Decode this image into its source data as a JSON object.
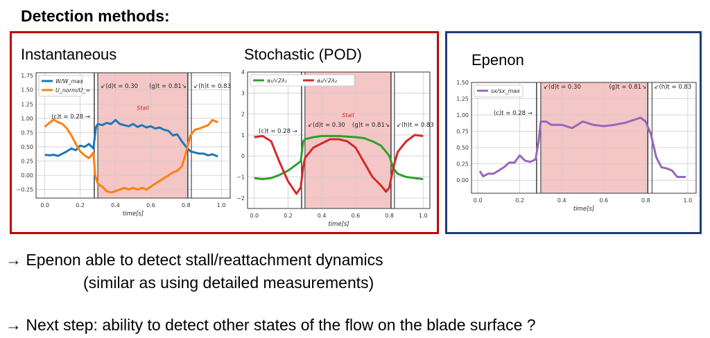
{
  "title": "Detection methods:",
  "sections": [
    "Instantaneous",
    "Stochastic (POD)",
    "Epenon"
  ],
  "colors": {
    "left_box": "#c00000",
    "right_box": "#1f3b7a",
    "stall_shade": "#f5c6c6"
  },
  "notes": [
    "→ Epenon able to detect stall/reattachment dynamics",
    "(similar as using detailed measurements)",
    "→ Next step: ability to detect other states of the flow on the blade surface ?"
  ],
  "chart_data": [
    {
      "type": "line",
      "xlabel": "time[s]",
      "xlim": [
        -0.05,
        1.05
      ],
      "ylim": [
        -0.4,
        1.8
      ],
      "xticks": [
        "0.0",
        "0.2",
        "0.4",
        "0.6",
        "0.8",
        "1.0"
      ],
      "yticks": [
        "-0.25",
        "0.00",
        "0.25",
        "0.50",
        "0.75",
        "1.00",
        "1.25",
        "1.50",
        "1.75"
      ],
      "grid": true,
      "legend": "top-left",
      "shaded_region": [
        0.3,
        0.81
      ],
      "shaded_label": "Stall",
      "vlines": [
        0.28,
        0.3,
        0.81,
        0.83
      ],
      "annotations": [
        "(c)t = 0.28",
        "(d)t = 0.30",
        "(g)t = 0.81",
        "(h)t = 0.83"
      ],
      "series": [
        {
          "name": "W/W_max",
          "color": "#1f77b4",
          "x": [
            0,
            0.025,
            0.05,
            0.075,
            0.1,
            0.125,
            0.15,
            0.175,
            0.2,
            0.225,
            0.25,
            0.275,
            0.29,
            0.3,
            0.325,
            0.35,
            0.375,
            0.4,
            0.425,
            0.45,
            0.475,
            0.5,
            0.525,
            0.55,
            0.575,
            0.6,
            0.625,
            0.65,
            0.675,
            0.7,
            0.725,
            0.75,
            0.775,
            0.8,
            0.825,
            0.85,
            0.875,
            0.9,
            0.925,
            0.95,
            0.98
          ],
          "y": [
            0.36,
            0.35,
            0.36,
            0.34,
            0.38,
            0.42,
            0.47,
            0.44,
            0.52,
            0.5,
            0.55,
            0.47,
            0.85,
            0.9,
            0.88,
            0.92,
            0.9,
            0.97,
            0.9,
            0.88,
            0.86,
            0.9,
            0.85,
            0.88,
            0.84,
            0.86,
            0.82,
            0.84,
            0.8,
            0.78,
            0.7,
            0.72,
            0.6,
            0.5,
            0.42,
            0.4,
            0.38,
            0.38,
            0.35,
            0.37,
            0.33
          ]
        },
        {
          "name": "U_norm/U_∞",
          "color": "#ff7f0e",
          "x": [
            0,
            0.025,
            0.05,
            0.075,
            0.1,
            0.125,
            0.15,
            0.175,
            0.2,
            0.225,
            0.25,
            0.275,
            0.285,
            0.3,
            0.325,
            0.35,
            0.375,
            0.4,
            0.425,
            0.45,
            0.475,
            0.5,
            0.525,
            0.55,
            0.575,
            0.6,
            0.625,
            0.65,
            0.675,
            0.7,
            0.725,
            0.75,
            0.775,
            0.8,
            0.825,
            0.85,
            0.875,
            0.9,
            0.925,
            0.95,
            0.98
          ],
          "y": [
            0.85,
            0.92,
            0.98,
            0.93,
            0.9,
            0.82,
            0.7,
            0.55,
            0.42,
            0.35,
            0.3,
            0.4,
            0.0,
            -0.15,
            -0.2,
            -0.28,
            -0.3,
            -0.28,
            -0.25,
            -0.22,
            -0.25,
            -0.22,
            -0.25,
            -0.22,
            -0.25,
            -0.2,
            -0.15,
            -0.1,
            -0.05,
            0.0,
            0.05,
            0.08,
            0.15,
            0.4,
            0.7,
            0.8,
            0.82,
            0.85,
            0.88,
            0.97,
            0.93
          ]
        }
      ]
    },
    {
      "type": "line",
      "xlabel": "time[s]",
      "xlim": [
        -0.04,
        1.04
      ],
      "ylim": [
        -2.5,
        4
      ],
      "xticks": [
        "0.0",
        "0.2",
        "0.4",
        "0.6",
        "0.8",
        "1.0"
      ],
      "yticks": [
        "-2",
        "-1",
        "0",
        "1",
        "2",
        "3",
        "4"
      ],
      "grid": true,
      "legend": "top-left",
      "shaded_region": [
        0.3,
        0.81
      ],
      "shaded_label": "Stall",
      "vlines": [
        0.28,
        0.3,
        0.81,
        0.83
      ],
      "annotations": [
        "(c)t = 0.28",
        "(d)t = 0.30",
        "(g)t = 0.81",
        "(h)t = 0.83"
      ],
      "series": [
        {
          "name": "a₁/√2λ₁",
          "color": "#2ca02c",
          "x": [
            0,
            0.05,
            0.1,
            0.15,
            0.2,
            0.25,
            0.275,
            0.29,
            0.3,
            0.35,
            0.4,
            0.45,
            0.5,
            0.55,
            0.6,
            0.65,
            0.7,
            0.75,
            0.8,
            0.825,
            0.85,
            0.9,
            0.95,
            1.0
          ],
          "y": [
            -1.05,
            -1.1,
            -1.05,
            -0.9,
            -0.7,
            -0.4,
            -0.25,
            0.7,
            0.8,
            0.9,
            0.95,
            0.95,
            0.95,
            0.92,
            0.9,
            0.85,
            0.7,
            0.5,
            0.0,
            -0.6,
            -0.85,
            -1.0,
            -1.05,
            -1.1
          ]
        },
        {
          "name": "a₂/√2λ₂",
          "color": "#d62728",
          "x": [
            0,
            0.05,
            0.1,
            0.15,
            0.2,
            0.25,
            0.275,
            0.29,
            0.3,
            0.35,
            0.4,
            0.45,
            0.5,
            0.55,
            0.6,
            0.65,
            0.7,
            0.75,
            0.78,
            0.8,
            0.825,
            0.85,
            0.9,
            0.95,
            1.0
          ],
          "y": [
            0.9,
            0.95,
            0.7,
            -0.3,
            -1.2,
            -1.8,
            -1.5,
            -0.5,
            -0.1,
            0.4,
            0.6,
            0.8,
            0.8,
            0.7,
            0.4,
            -0.3,
            -1.0,
            -1.4,
            -1.7,
            -1.5,
            -0.5,
            0.2,
            0.7,
            1.0,
            0.95
          ]
        }
      ]
    },
    {
      "type": "line",
      "xlabel": "time[s]",
      "xlim": [
        -0.03,
        1.04
      ],
      "ylim": [
        -0.2,
        1.5
      ],
      "xticks": [
        "0.0",
        "0.2",
        "0.4",
        "0.6",
        "0.8",
        "1.0"
      ],
      "yticks": [
        "0.00",
        "0.25",
        "0.50",
        "0.75",
        "1.00",
        "1.25",
        "1.50"
      ],
      "grid": true,
      "legend": "top-left",
      "shaded_region": [
        0.3,
        0.81
      ],
      "vlines": [
        0.28,
        0.3,
        0.81,
        0.83
      ],
      "annotations": [
        "(c)t = 0.28",
        "(d)t = 0.30",
        "(g)t = 0.81",
        "(h)t = 0.83"
      ],
      "series": [
        {
          "name": "sx/sx_max",
          "color": "#9467bd",
          "x": [
            0.01,
            0.025,
            0.05,
            0.075,
            0.1,
            0.125,
            0.15,
            0.175,
            0.2,
            0.225,
            0.25,
            0.275,
            0.29,
            0.3,
            0.325,
            0.35,
            0.4,
            0.45,
            0.5,
            0.55,
            0.6,
            0.65,
            0.7,
            0.75,
            0.775,
            0.8,
            0.825,
            0.85,
            0.875,
            0.9,
            0.925,
            0.95,
            0.975,
            0.99
          ],
          "y": [
            0.14,
            0.06,
            0.1,
            0.1,
            0.15,
            0.2,
            0.27,
            0.27,
            0.38,
            0.3,
            0.28,
            0.32,
            0.6,
            0.9,
            0.9,
            0.85,
            0.85,
            0.8,
            0.9,
            0.85,
            0.83,
            0.85,
            0.88,
            0.93,
            0.96,
            0.9,
            0.7,
            0.35,
            0.2,
            0.18,
            0.15,
            0.05,
            0.05,
            0.05
          ]
        }
      ]
    }
  ]
}
